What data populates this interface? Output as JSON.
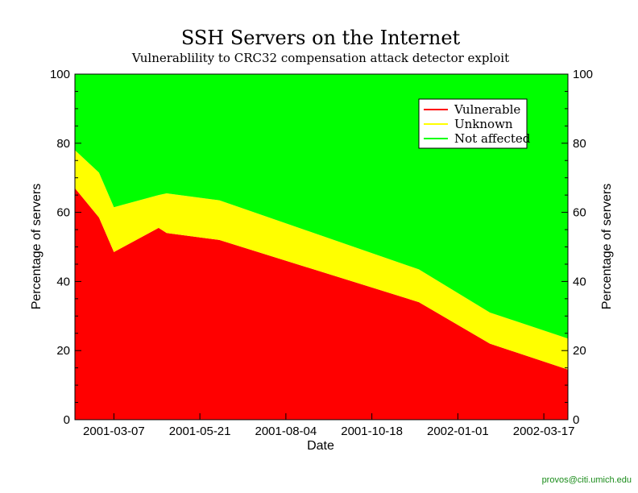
{
  "chart_data": {
    "type": "area",
    "title": "SSH Servers on the Internet",
    "subtitle": "Vulnerablility to CRC32 compensation attack detector exploit",
    "xlabel": "Date",
    "ylabel": "Percentage of servers",
    "y2label": "Percentage of servers",
    "ylim": [
      0,
      100
    ],
    "yticks": [
      0,
      20,
      40,
      60,
      80,
      100
    ],
    "xlim": [
      "2001-02-01",
      "2002-04-07"
    ],
    "xticks": [
      "2001-03-07",
      "2001-05-21",
      "2001-08-04",
      "2001-10-18",
      "2002-01-01",
      "2002-03-17"
    ],
    "stacked": true,
    "grid": false,
    "legend_position": "top-right",
    "x": [
      "2001-02-01",
      "2001-02-22",
      "2001-03-07",
      "2001-04-15",
      "2001-04-22",
      "2001-06-07",
      "2001-11-28",
      "2002-01-29",
      "2002-04-07"
    ],
    "series": [
      {
        "name": "Vulnerable",
        "color": "#ff0000",
        "values": [
          67,
          58.5,
          48.5,
          55.5,
          54,
          52,
          34,
          22,
          14.5
        ]
      },
      {
        "name": "Unknown",
        "color": "#ffff00",
        "values": [
          11,
          13,
          13,
          9.5,
          11.5,
          11.5,
          9.5,
          9,
          9
        ]
      },
      {
        "name": "Not affected",
        "color": "#00ff00",
        "values": [
          22,
          28.5,
          38.5,
          35,
          34.5,
          36.5,
          56.5,
          69,
          76.5
        ]
      }
    ]
  },
  "footer": {
    "credit": "provos@citi.umich.edu"
  }
}
